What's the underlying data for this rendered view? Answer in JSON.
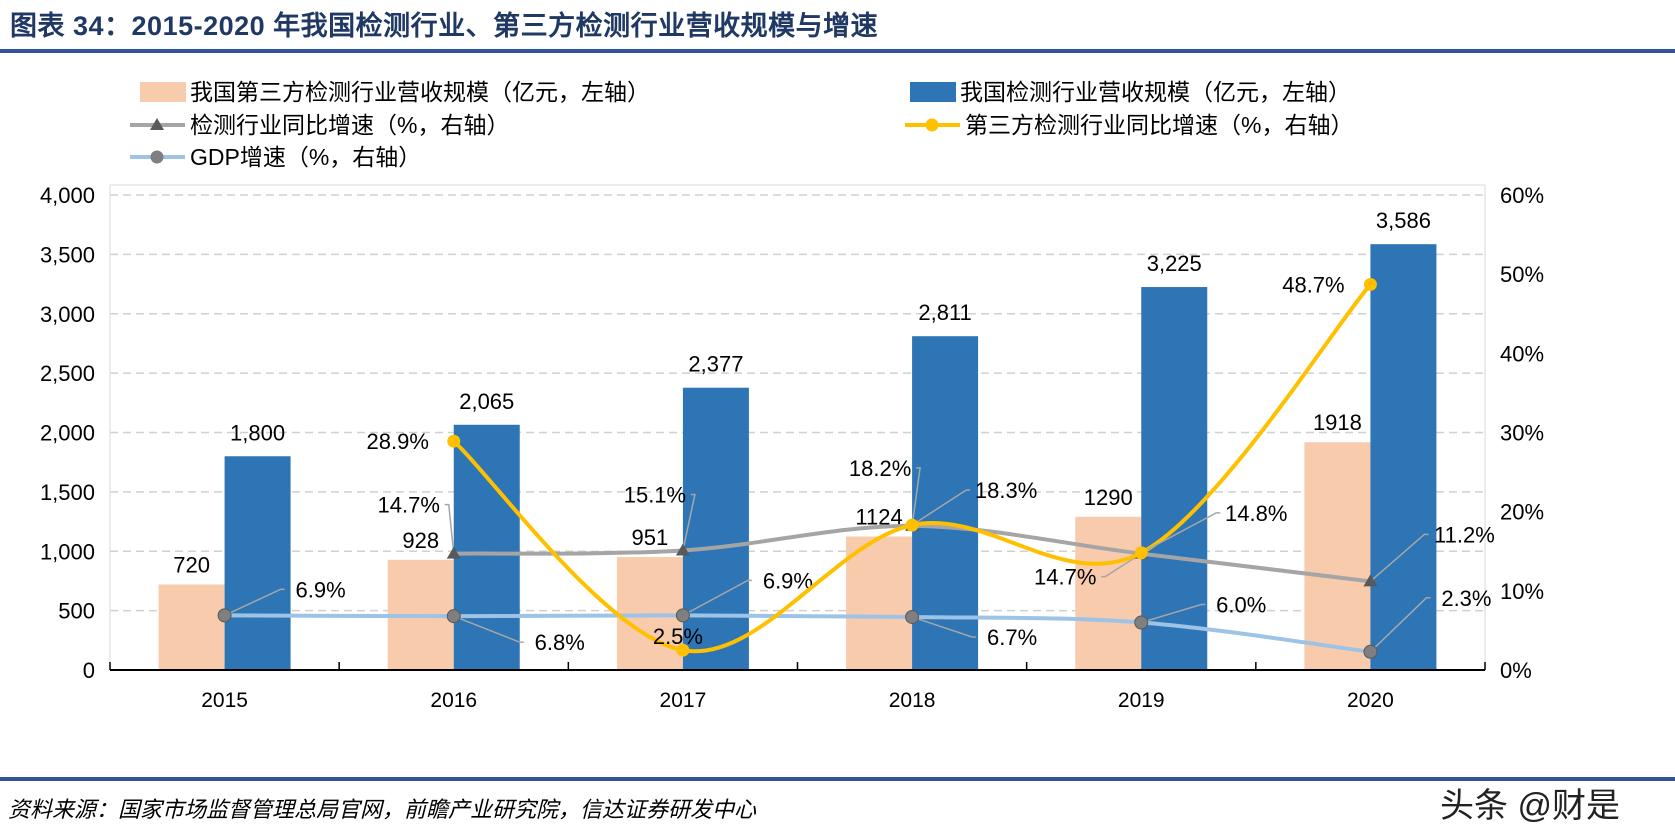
{
  "title": "图表 34：2015-2020 年我国检测行业、第三方检测行业营收规模与增速",
  "source": "资料来源：国家市场监督管理总局官网，前瞻产业研究院，信达证券研发中心",
  "watermark": "头条 @财是",
  "chart_data": {
    "type": "bar+line",
    "categories": [
      "2015",
      "2016",
      "2017",
      "2018",
      "2019",
      "2020"
    ],
    "left_axis": {
      "range": [
        0,
        4000
      ],
      "ticks": [
        "0",
        "500",
        "1,000",
        "1,500",
        "2,000",
        "2,500",
        "3,000",
        "3,500",
        "4,000"
      ]
    },
    "right_axis": {
      "range": [
        0,
        60
      ],
      "ticks": [
        "0%",
        "10%",
        "20%",
        "30%",
        "40%",
        "50%",
        "60%"
      ]
    },
    "grid": true,
    "legend_placement": "top",
    "series": [
      {
        "name": "我国第三方检测行业营收规模（亿元，左轴）",
        "type": "bar",
        "axis": "left",
        "color": "#f8cbad",
        "values": [
          720,
          928,
          951,
          1124,
          1290,
          1918
        ],
        "labels": [
          "720",
          "928",
          "951",
          "1124",
          "1290",
          "1918"
        ]
      },
      {
        "name": "我国检测行业营收规模（亿元，左轴）",
        "type": "bar",
        "axis": "left",
        "color": "#2e75b6",
        "values": [
          1800,
          2065,
          2377,
          2811,
          3225,
          3586
        ],
        "labels": [
          "1,800",
          "2,065",
          "2,377",
          "2,811",
          "3,225",
          "3,586"
        ]
      },
      {
        "name": "检测行业同比增速（%，右轴）",
        "type": "line",
        "axis": "right",
        "color": "#a5a5a5",
        "marker": "triangle",
        "values": [
          null,
          14.7,
          15.1,
          18.2,
          14.7,
          11.2
        ],
        "labels": [
          null,
          "14.7%",
          "15.1%",
          "18.2%",
          "14.7%",
          "11.2%"
        ]
      },
      {
        "name": "第三方检测行业同比增速（%，右轴）",
        "type": "line",
        "axis": "right",
        "color": "#ffc000",
        "marker": "circle",
        "values": [
          null,
          28.9,
          2.5,
          18.3,
          14.8,
          48.7
        ],
        "labels": [
          null,
          "28.9%",
          "2.5%",
          "18.3%",
          "14.8%",
          "48.7%"
        ]
      },
      {
        "name": "GDP增速（%，右轴）",
        "type": "line",
        "axis": "right",
        "color": "#9dc3e6",
        "marker": "circle-gray",
        "values": [
          6.9,
          6.8,
          6.9,
          6.7,
          6.0,
          2.3
        ],
        "labels": [
          "6.9%",
          "6.8%",
          "6.9%",
          "6.7%",
          "6.0%",
          "2.3%"
        ]
      }
    ]
  }
}
